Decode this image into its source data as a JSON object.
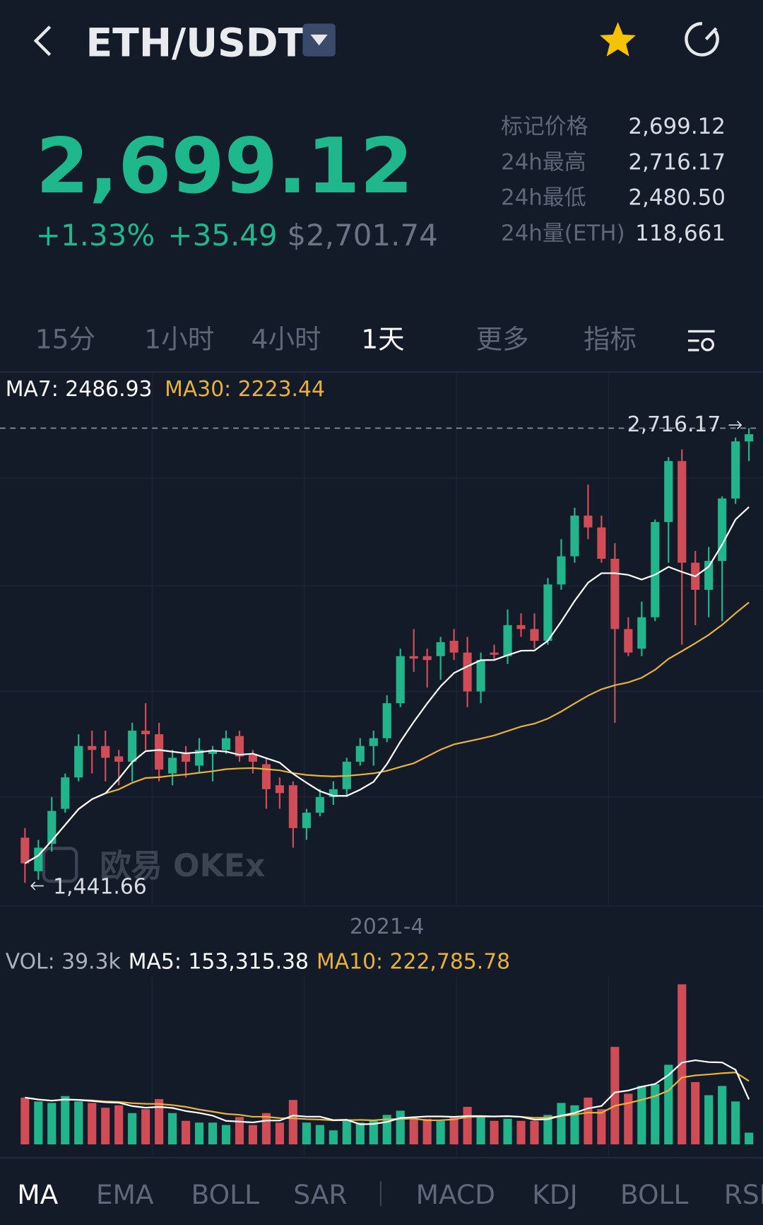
{
  "header": {
    "pair": "ETH/USDT"
  },
  "price": {
    "last": "2,699.12",
    "change_pct": "+1.33%",
    "change": "+35.49",
    "usd": "$2,701.74"
  },
  "stats": [
    {
      "label": "标记价格",
      "value": "2,699.12"
    },
    {
      "label": "24h最高",
      "value": "2,716.17"
    },
    {
      "label": "24h最低",
      "value": "2,480.50"
    },
    {
      "label": "24h量(ETH)",
      "value": "118,661"
    }
  ],
  "tabs": [
    "15分",
    "1小时",
    "4小时",
    "1天",
    "更多",
    "指标"
  ],
  "active_tab": 3,
  "chart_data": {
    "type": "candlestick",
    "ma_legend": [
      {
        "text": "MA7: 2486.93",
        "color": "#ffffff"
      },
      {
        "text": "MA30: 2223.44",
        "color": "#e8b23a"
      }
    ],
    "high_label": "2,716.17",
    "low_label": "1,441.66",
    "watermark": "欧易 OKEx",
    "x_label": "2021-4",
    "up_color": "#22b58b",
    "down_color": "#d04c57",
    "open": [
      1568,
      1474,
      1551,
      1649,
      1737,
      1825,
      1825,
      1796,
      1781,
      1868,
      1858,
      1748,
      1803,
      1770,
      1803,
      1814,
      1853,
      1803,
      1774,
      1715,
      1715,
      1595,
      1638,
      1682,
      1704,
      1781,
      1825,
      1847,
      1945,
      2077,
      2077,
      2077,
      2120,
      2087,
      1978,
      2087,
      2077,
      2164,
      2153,
      2120,
      2278,
      2357,
      2471,
      2438,
      2350,
      2153,
      2098,
      2186,
      2453,
      2624,
      2339,
      2263,
      2344,
      2519,
      2679
    ],
    "high": [
      1595,
      1562,
      1682,
      1748,
      1858,
      1868,
      1868,
      1814,
      1890,
      1945,
      1890,
      1814,
      1825,
      1847,
      1825,
      1868,
      1868,
      1814,
      1792,
      1737,
      1726,
      1649,
      1704,
      1726,
      1792,
      1847,
      1868,
      1967,
      2098,
      2153,
      2098,
      2131,
      2153,
      2131,
      2087,
      2109,
      2208,
      2197,
      2197,
      2296,
      2405,
      2493,
      2558,
      2471,
      2394,
      2186,
      2230,
      2460,
      2635,
      2657,
      2372,
      2383,
      2525,
      2690,
      2716.17
    ],
    "low": [
      1441.66,
      1450,
      1529,
      1638,
      1726,
      1748,
      1726,
      1715,
      1726,
      1814,
      1726,
      1715,
      1737,
      1748,
      1726,
      1803,
      1781,
      1748,
      1649,
      1649,
      1540,
      1562,
      1628,
      1660,
      1682,
      1770,
      1770,
      1836,
      1934,
      2033,
      1989,
      2011,
      2066,
      1934,
      1945,
      2066,
      2055,
      2131,
      2098,
      2109,
      2263,
      2339,
      2405,
      2339,
      1890,
      2077,
      2077,
      2175,
      2339,
      2109,
      2164,
      2186,
      2175,
      2504,
      2624
    ],
    "close": [
      1496,
      1540,
      1643,
      1737,
      1825,
      1814,
      1792,
      1781,
      1868,
      1858,
      1759,
      1792,
      1781,
      1814,
      1814,
      1847,
      1796,
      1781,
      1704,
      1693,
      1595,
      1638,
      1682,
      1704,
      1781,
      1825,
      1847,
      1945,
      2077,
      2070,
      2066,
      2116,
      2087,
      1978,
      2066,
      2081,
      2164,
      2153,
      2120,
      2278,
      2357,
      2471,
      2438,
      2350,
      2153,
      2087,
      2186,
      2453,
      2624,
      2339,
      2263,
      2344,
      2519,
      2679,
      2699.12
    ],
    "volume": {
      "legend": [
        {
          "text": "VOL: 39.3k",
          "color": "#aab0bc"
        },
        {
          "text": "MA5: 153,315.38",
          "color": "#ffffff"
        },
        {
          "text": "MA10: 222,785.78",
          "color": "#e8b23a"
        }
      ],
      "values": [
        157000,
        144000,
        139000,
        162000,
        144000,
        139000,
        123000,
        131000,
        105000,
        118000,
        152000,
        105000,
        79000,
        73000,
        73000,
        65000,
        92000,
        65000,
        105000,
        73000,
        149000,
        73000,
        65000,
        47000,
        79000,
        73000,
        79000,
        99000,
        113000,
        92000,
        86000,
        79000,
        92000,
        126000,
        92000,
        79000,
        86000,
        79000,
        79000,
        99000,
        139000,
        131000,
        157000,
        118000,
        327000,
        170000,
        196000,
        202000,
        267000,
        537000,
        209000,
        165000,
        196000,
        144000,
        39300
      ]
    }
  },
  "indicators": [
    "MA",
    "EMA",
    "BOLL",
    "SAR",
    "MACD",
    "KDJ",
    "BOLL",
    "RSI"
  ]
}
